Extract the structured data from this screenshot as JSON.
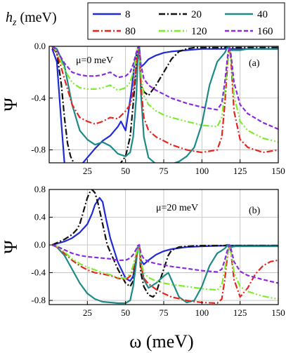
{
  "legend": {
    "title_main": "h",
    "title_sub": "z",
    "title_unit": " (meV)",
    "placement": "top"
  },
  "xlabel": "ω (meV)",
  "colors": {
    "8": "#1f2bd6",
    "20": "#111111",
    "40": "#1d8a86",
    "80": "#e8251f",
    "120": "#7dec2f",
    "160": "#8a2be2"
  },
  "chart_data": [
    {
      "type": "line",
      "panel": "(a)",
      "annotation": "μ=0 meV",
      "ylabel": "Ψ",
      "xlim": [
        0,
        150
      ],
      "ylim": [
        -0.9,
        0.0
      ],
      "xticks": [
        25,
        50,
        75,
        100,
        125,
        150
      ],
      "yticks": [
        0.0,
        -0.4,
        -0.8
      ],
      "grid": true,
      "series": [
        {
          "name": "8",
          "style": "solid",
          "x": [
            2,
            5,
            8,
            10,
            12,
            14,
            16,
            20,
            25,
            30,
            35,
            40,
            45,
            47,
            50,
            52,
            54,
            56,
            58,
            59,
            60,
            62,
            65,
            70,
            75,
            80,
            90,
            100,
            115,
            117,
            119,
            125,
            130,
            140,
            150
          ],
          "y": [
            -0.02,
            -0.12,
            -0.6,
            -0.9,
            -0.97,
            -0.99,
            -0.98,
            -0.93,
            -0.86,
            -0.79,
            -0.73,
            -0.69,
            -0.62,
            -0.58,
            -0.65,
            -0.5,
            -0.33,
            -0.12,
            -0.02,
            0.0,
            -0.16,
            -0.14,
            -0.1,
            -0.07,
            -0.05,
            -0.04,
            -0.03,
            -0.02,
            -0.02,
            -0.01,
            -0.02,
            -0.02,
            -0.02,
            -0.02,
            -0.02
          ]
        },
        {
          "name": "20",
          "style": "dashdot",
          "x": [
            2,
            5,
            8,
            10,
            12,
            14,
            16,
            18,
            20,
            25,
            30,
            35,
            40,
            45,
            50,
            53,
            55,
            57,
            58,
            59,
            60,
            62,
            65,
            70,
            75,
            80,
            85,
            90,
            95,
            100,
            115,
            117,
            119,
            125,
            130,
            140,
            150
          ],
          "y": [
            -0.01,
            -0.05,
            -0.3,
            -0.55,
            -0.75,
            -0.85,
            -0.9,
            -0.92,
            -0.93,
            -0.95,
            -0.96,
            -0.97,
            -0.96,
            -0.93,
            -0.85,
            -0.7,
            -0.45,
            -0.15,
            -0.02,
            0.0,
            -0.3,
            -0.35,
            -0.38,
            -0.3,
            -0.2,
            -0.1,
            -0.04,
            -0.02,
            -0.01,
            -0.01,
            -0.01,
            0.0,
            -0.01,
            -0.01,
            -0.01,
            -0.01,
            -0.01
          ]
        },
        {
          "name": "40",
          "style": "solid",
          "x": [
            2,
            5,
            10,
            15,
            20,
            25,
            30,
            35,
            40,
            45,
            50,
            53,
            55,
            57,
            58,
            59,
            60,
            62,
            65,
            70,
            75,
            80,
            85,
            90,
            95,
            100,
            105,
            110,
            115,
            117,
            119,
            125,
            130,
            140,
            150
          ],
          "y": [
            0.0,
            -0.02,
            -0.15,
            -0.45,
            -0.65,
            -0.72,
            -0.76,
            -0.74,
            -0.77,
            -0.83,
            -0.85,
            -0.82,
            -0.7,
            -0.4,
            -0.1,
            0.0,
            -0.35,
            -0.7,
            -0.86,
            -0.91,
            -0.92,
            -0.91,
            -0.89,
            -0.85,
            -0.78,
            -0.6,
            -0.3,
            -0.12,
            -0.05,
            0.0,
            -0.03,
            -0.03,
            -0.02,
            -0.02,
            -0.02
          ]
        },
        {
          "name": "80",
          "style": "dashdot",
          "x": [
            2,
            5,
            10,
            15,
            20,
            25,
            30,
            35,
            40,
            45,
            50,
            53,
            55,
            57,
            58,
            59,
            60,
            62,
            65,
            70,
            75,
            80,
            90,
            100,
            110,
            113,
            115,
            117,
            118,
            119,
            121,
            125,
            130,
            140,
            150
          ],
          "y": [
            0.0,
            -0.05,
            -0.25,
            -0.45,
            -0.55,
            -0.58,
            -0.6,
            -0.58,
            -0.55,
            -0.56,
            -0.5,
            -0.45,
            -0.35,
            -0.15,
            -0.03,
            0.0,
            -0.3,
            -0.55,
            -0.65,
            -0.7,
            -0.73,
            -0.76,
            -0.8,
            -0.82,
            -0.8,
            -0.7,
            -0.45,
            -0.1,
            0.0,
            -0.1,
            -0.5,
            -0.72,
            -0.78,
            -0.82,
            -0.8
          ]
        },
        {
          "name": "120",
          "style": "dashdotdot",
          "x": [
            2,
            5,
            10,
            15,
            20,
            25,
            30,
            35,
            40,
            45,
            50,
            53,
            55,
            57,
            58,
            59,
            60,
            62,
            65,
            70,
            75,
            80,
            90,
            100,
            110,
            113,
            115,
            117,
            118,
            119,
            121,
            125,
            130,
            140,
            150
          ],
          "y": [
            0.0,
            -0.04,
            -0.18,
            -0.28,
            -0.32,
            -0.33,
            -0.33,
            -0.32,
            -0.3,
            -0.34,
            -0.32,
            -0.28,
            -0.2,
            -0.08,
            -0.01,
            0.0,
            -0.2,
            -0.38,
            -0.45,
            -0.5,
            -0.53,
            -0.55,
            -0.58,
            -0.61,
            -0.62,
            -0.55,
            -0.35,
            -0.08,
            0.0,
            -0.08,
            -0.38,
            -0.58,
            -0.65,
            -0.71,
            -0.74
          ]
        },
        {
          "name": "160",
          "style": "dashed",
          "x": [
            2,
            5,
            10,
            15,
            20,
            25,
            30,
            35,
            40,
            45,
            50,
            53,
            55,
            57,
            58,
            59,
            60,
            62,
            65,
            70,
            75,
            80,
            90,
            100,
            110,
            113,
            115,
            117,
            118,
            119,
            121,
            125,
            130,
            140,
            150
          ],
          "y": [
            0.0,
            -0.03,
            -0.13,
            -0.2,
            -0.22,
            -0.23,
            -0.23,
            -0.22,
            -0.2,
            -0.24,
            -0.23,
            -0.2,
            -0.14,
            -0.05,
            -0.01,
            0.0,
            -0.14,
            -0.25,
            -0.3,
            -0.34,
            -0.37,
            -0.4,
            -0.44,
            -0.47,
            -0.49,
            -0.44,
            -0.28,
            -0.06,
            0.0,
            -0.06,
            -0.28,
            -0.45,
            -0.52,
            -0.59,
            -0.64
          ]
        }
      ]
    },
    {
      "type": "line",
      "panel": "(b)",
      "annotation": "μ=20 meV",
      "ylabel": "Ψ",
      "xlim": [
        0,
        150
      ],
      "ylim": [
        -0.86,
        0.8
      ],
      "xticks": [
        25,
        50,
        75,
        100,
        125,
        150
      ],
      "yticks": [
        0.8,
        0.4,
        0.0,
        -0.4,
        -0.8
      ],
      "grid": true,
      "series": [
        {
          "name": "8",
          "style": "solid",
          "x": [
            2,
            10,
            15,
            20,
            25,
            28,
            30,
            33,
            35,
            37,
            40,
            45,
            50,
            53,
            55,
            57,
            58,
            59,
            60,
            62,
            65,
            70,
            75,
            80,
            90,
            100,
            115,
            117,
            119,
            125,
            130,
            140,
            150
          ],
          "y": [
            0.0,
            0.05,
            0.1,
            0.18,
            0.3,
            0.45,
            0.58,
            0.68,
            0.62,
            0.4,
            0.1,
            -0.25,
            -0.48,
            -0.52,
            -0.45,
            -0.2,
            -0.02,
            0.0,
            -0.22,
            -0.28,
            -0.22,
            -0.14,
            -0.09,
            -0.06,
            -0.03,
            -0.02,
            -0.01,
            0.0,
            -0.01,
            -0.01,
            -0.01,
            -0.01,
            -0.01
          ]
        },
        {
          "name": "20",
          "style": "dashdot",
          "x": [
            2,
            10,
            15,
            18,
            20,
            22,
            25,
            27,
            28,
            30,
            32,
            35,
            38,
            40,
            45,
            50,
            53,
            55,
            57,
            58,
            59,
            60,
            62,
            65,
            68,
            70,
            72,
            75,
            78,
            80,
            85,
            90,
            100,
            115,
            117,
            119,
            125,
            130,
            140,
            150
          ],
          "y": [
            0.0,
            0.08,
            0.15,
            0.22,
            0.3,
            0.45,
            0.68,
            0.78,
            0.8,
            0.75,
            0.6,
            0.3,
            0.0,
            -0.1,
            -0.35,
            -0.55,
            -0.6,
            -0.52,
            -0.2,
            -0.02,
            0.0,
            -0.4,
            -0.6,
            -0.72,
            -0.75,
            -0.7,
            -0.55,
            -0.35,
            -0.15,
            -0.08,
            -0.03,
            -0.02,
            -0.01,
            -0.01,
            0.0,
            -0.01,
            -0.01,
            -0.01,
            -0.01,
            -0.01
          ]
        },
        {
          "name": "40",
          "style": "solid",
          "x": [
            2,
            5,
            10,
            15,
            20,
            25,
            30,
            35,
            40,
            45,
            50,
            53,
            55,
            57,
            58,
            59,
            60,
            62,
            65,
            70,
            75,
            78,
            80,
            85,
            90,
            95,
            100,
            105,
            110,
            113,
            115,
            117,
            119,
            122,
            125,
            130,
            140,
            150
          ],
          "y": [
            0.0,
            -0.03,
            -0.15,
            -0.35,
            -0.55,
            -0.7,
            -0.78,
            -0.82,
            -0.83,
            -0.84,
            -0.84,
            -0.8,
            -0.6,
            -0.25,
            -0.03,
            0.0,
            -0.25,
            -0.5,
            -0.62,
            -0.55,
            -0.45,
            -0.4,
            -0.5,
            -0.75,
            -0.83,
            -0.8,
            -0.6,
            -0.3,
            -0.12,
            -0.08,
            -0.05,
            0.0,
            -0.03,
            -0.02,
            -0.02,
            -0.02,
            -0.02,
            -0.02
          ]
        },
        {
          "name": "80",
          "style": "dashdot",
          "x": [
            2,
            5,
            10,
            15,
            20,
            25,
            30,
            35,
            40,
            45,
            50,
            53,
            55,
            57,
            58,
            59,
            60,
            62,
            65,
            70,
            75,
            80,
            90,
            100,
            110,
            113,
            115,
            117,
            118,
            119,
            121,
            125,
            130,
            135,
            140,
            145,
            150
          ],
          "y": [
            0.0,
            -0.03,
            -0.12,
            -0.22,
            -0.3,
            -0.36,
            -0.4,
            -0.42,
            -0.44,
            -0.48,
            -0.5,
            -0.45,
            -0.35,
            -0.15,
            -0.03,
            0.0,
            -0.3,
            -0.48,
            -0.56,
            -0.64,
            -0.7,
            -0.75,
            -0.8,
            -0.83,
            -0.84,
            -0.78,
            -0.5,
            -0.1,
            0.0,
            -0.1,
            -0.5,
            -0.75,
            -0.62,
            -0.42,
            -0.3,
            -0.24,
            -0.22
          ]
        },
        {
          "name": "120",
          "style": "dashdotdot",
          "x": [
            2,
            5,
            10,
            15,
            20,
            25,
            30,
            35,
            40,
            45,
            50,
            53,
            55,
            57,
            58,
            59,
            60,
            62,
            65,
            70,
            75,
            80,
            90,
            100,
            110,
            113,
            115,
            117,
            118,
            119,
            121,
            125,
            130,
            140,
            150
          ],
          "y": [
            0.0,
            -0.02,
            -0.1,
            -0.2,
            -0.27,
            -0.32,
            -0.36,
            -0.4,
            -0.43,
            -0.47,
            -0.48,
            -0.42,
            -0.3,
            -0.12,
            -0.02,
            0.0,
            -0.25,
            -0.4,
            -0.47,
            -0.52,
            -0.55,
            -0.57,
            -0.6,
            -0.63,
            -0.65,
            -0.58,
            -0.35,
            -0.08,
            0.0,
            -0.08,
            -0.4,
            -0.6,
            -0.67,
            -0.74,
            -0.78
          ]
        },
        {
          "name": "160",
          "style": "dashed",
          "x": [
            2,
            5,
            10,
            15,
            20,
            25,
            30,
            35,
            40,
            45,
            50,
            53,
            55,
            57,
            58,
            59,
            60,
            62,
            65,
            70,
            75,
            80,
            90,
            100,
            110,
            113,
            115,
            117,
            118,
            119,
            121,
            125,
            130,
            140,
            150
          ],
          "y": [
            0.0,
            -0.02,
            -0.07,
            -0.12,
            -0.15,
            -0.17,
            -0.18,
            -0.19,
            -0.2,
            -0.22,
            -0.22,
            -0.19,
            -0.14,
            -0.06,
            -0.01,
            0.0,
            -0.12,
            -0.2,
            -0.24,
            -0.27,
            -0.29,
            -0.31,
            -0.34,
            -0.37,
            -0.39,
            -0.35,
            -0.22,
            -0.05,
            0.0,
            -0.05,
            -0.24,
            -0.38,
            -0.44,
            -0.5,
            -0.55
          ]
        }
      ]
    }
  ]
}
